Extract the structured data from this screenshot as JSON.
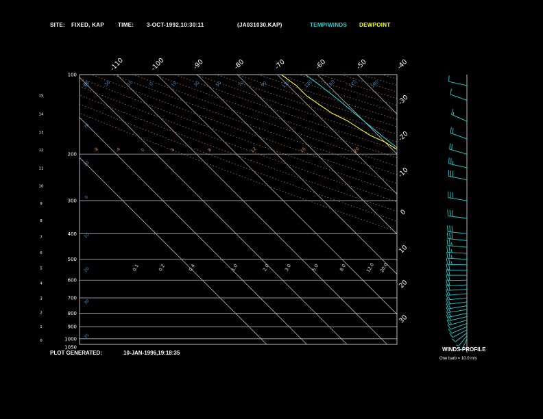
{
  "header": {
    "site_label": "SITE:",
    "site_value": "FIXED, KAP",
    "time_label": "TIME:",
    "time_value": "3-OCT-1992,10:30:11",
    "file_id": "(JA031030.KAP)",
    "legend_temp": "TEMP/WINDS",
    "legend_dew": "DEWPOINT"
  },
  "footer": {
    "plot_generated_label": "PLOT GENERATED:",
    "plot_generated_value": "10-JAN-1996,19:18:35",
    "winds_profile_label": "WINDS PROFILE",
    "barb_note": "One barb = 10.0 m/s"
  },
  "colors": {
    "background": "#000000",
    "temp_line": "#22d3d3",
    "dew_line": "#ffff22",
    "isobar": "#b4b4b4",
    "isotherm": "#b4b4b4",
    "dry_adiabat": "#d08a50",
    "moist_adiabat": "#4a8fd0",
    "mixing_ratio": "#7acc7a",
    "header_text": "#ffffff"
  },
  "chart_data": {
    "type": "line",
    "subtype": "skew-t log-p",
    "y_axis": {
      "pressure_ticks": [
        "100",
        "200",
        "300",
        "400",
        "500",
        "600",
        "700",
        "800",
        "900",
        "1000",
        "1050"
      ],
      "pressure_values": [
        100,
        200,
        300,
        400,
        500,
        600,
        700,
        800,
        900,
        1000,
        1050
      ],
      "height_km_ticks": [
        "0",
        "1",
        "2",
        "3",
        "4",
        "5",
        "6",
        "7",
        "8",
        "9",
        "10",
        "11",
        "12",
        "13",
        "14",
        "15"
      ],
      "plim": [
        100,
        1050
      ]
    },
    "top_temp_ticks": [
      "-110",
      "-100",
      "-90",
      "-80",
      "-70",
      "-60",
      "-50",
      "-40"
    ],
    "right_temp_ticks": [
      "-30",
      "-20",
      "-10",
      "0",
      "10",
      "20",
      "30"
    ],
    "dry_adiabat_labels": [
      "-50",
      "-30",
      "-10",
      "0",
      "10",
      "30",
      "50",
      "70",
      "90",
      "110",
      "130",
      "150",
      "170",
      "190"
    ],
    "mixing_ratio_labels": [
      "0.1",
      "0.2",
      "0.4",
      "1.0",
      "2.0",
      "3.0",
      "5.0",
      "8.0",
      "12.0",
      "20.0"
    ],
    "moist_labels": [
      "-8",
      "-4",
      "0",
      "4",
      "8",
      "12",
      "16",
      "20",
      "24",
      "28",
      "32"
    ],
    "series": [
      {
        "name": "TEMP/WINDS",
        "pressure": [
          1000,
          975,
          950,
          925,
          900,
          850,
          800,
          750,
          700,
          650,
          600,
          550,
          500,
          450,
          400,
          350,
          300,
          250,
          200,
          175,
          150,
          125,
          110,
          100
        ],
        "temp": [
          14.5,
          12.5,
          11,
          9.5,
          8,
          5,
          1.5,
          -1.5,
          -4.5,
          -8,
          -12,
          -16,
          -21,
          -27,
          -33.5,
          -40.5,
          -48,
          -54,
          -58,
          -59,
          -60,
          -61,
          -62,
          -63
        ]
      },
      {
        "name": "DEWPOINT",
        "pressure": [
          1000,
          985,
          970,
          950,
          925,
          900,
          875,
          850,
          825,
          800,
          775,
          750,
          725,
          700,
          680,
          660,
          640,
          620,
          600,
          580,
          560,
          540,
          520,
          505,
          500,
          490,
          480,
          470,
          460,
          450,
          440,
          430,
          420,
          410,
          405,
          400,
          390,
          380,
          370,
          360,
          350,
          340,
          330,
          320,
          310,
          300,
          290,
          280,
          270,
          260,
          250,
          240,
          230,
          220,
          210,
          200,
          190,
          180,
          170,
          160,
          150,
          140,
          130,
          120,
          110,
          100
        ],
        "dewpoint": [
          11,
          9,
          10.5,
          9,
          8,
          6.5,
          5,
          3.5,
          3,
          1.5,
          0,
          -0.5,
          -2,
          -8,
          -5,
          -3,
          -3.5,
          -5,
          -4,
          -6,
          -5.5,
          -7,
          -6.5,
          -8,
          -13,
          -14,
          -11,
          -12,
          -13,
          -15,
          -14,
          -17,
          -18,
          -16,
          -18,
          -30,
          -26,
          -24,
          -25,
          -24,
          -31,
          -29,
          -30,
          -33,
          -35,
          -40,
          -44,
          -46,
          -50,
          -52,
          -53,
          -54,
          -56,
          -57,
          -57,
          -58,
          -59,
          -60,
          -62,
          -63,
          -64,
          -66,
          -67,
          -68,
          -68,
          -69
        ]
      }
    ],
    "winds": [
      {
        "pressure": 1000,
        "dir": 200,
        "spd": 5
      },
      {
        "pressure": 975,
        "dir": 210,
        "spd": 7
      },
      {
        "pressure": 950,
        "dir": 220,
        "spd": 9
      },
      {
        "pressure": 925,
        "dir": 230,
        "spd": 10
      },
      {
        "pressure": 900,
        "dir": 235,
        "spd": 11
      },
      {
        "pressure": 875,
        "dir": 240,
        "spd": 12
      },
      {
        "pressure": 850,
        "dir": 245,
        "spd": 13
      },
      {
        "pressure": 825,
        "dir": 250,
        "spd": 13
      },
      {
        "pressure": 800,
        "dir": 250,
        "spd": 14
      },
      {
        "pressure": 775,
        "dir": 255,
        "spd": 14
      },
      {
        "pressure": 750,
        "dir": 255,
        "spd": 15
      },
      {
        "pressure": 725,
        "dir": 258,
        "spd": 15
      },
      {
        "pressure": 700,
        "dir": 260,
        "spd": 16
      },
      {
        "pressure": 675,
        "dir": 262,
        "spd": 17
      },
      {
        "pressure": 650,
        "dir": 265,
        "spd": 18
      },
      {
        "pressure": 625,
        "dir": 265,
        "spd": 19
      },
      {
        "pressure": 600,
        "dir": 268,
        "spd": 20
      },
      {
        "pressure": 575,
        "dir": 270,
        "spd": 21
      },
      {
        "pressure": 550,
        "dir": 270,
        "spd": 22
      },
      {
        "pressure": 525,
        "dir": 272,
        "spd": 23
      },
      {
        "pressure": 500,
        "dir": 275,
        "spd": 24
      },
      {
        "pressure": 475,
        "dir": 275,
        "spd": 25
      },
      {
        "pressure": 450,
        "dir": 278,
        "spd": 27
      },
      {
        "pressure": 425,
        "dir": 280,
        "spd": 28
      },
      {
        "pressure": 400,
        "dir": 280,
        "spd": 29
      },
      {
        "pressure": 350,
        "dir": 282,
        "spd": 30
      },
      {
        "pressure": 300,
        "dir": 285,
        "spd": 31
      },
      {
        "pressure": 250,
        "dir": 288,
        "spd": 28
      },
      {
        "pressure": 225,
        "dir": 290,
        "spd": 25
      },
      {
        "pressure": 200,
        "dir": 295,
        "spd": 22
      },
      {
        "pressure": 175,
        "dir": 300,
        "spd": 18
      },
      {
        "pressure": 150,
        "dir": 305,
        "spd": 15
      },
      {
        "pressure": 125,
        "dir": 300,
        "spd": 12
      },
      {
        "pressure": 110,
        "dir": 290,
        "spd": 10
      }
    ]
  }
}
